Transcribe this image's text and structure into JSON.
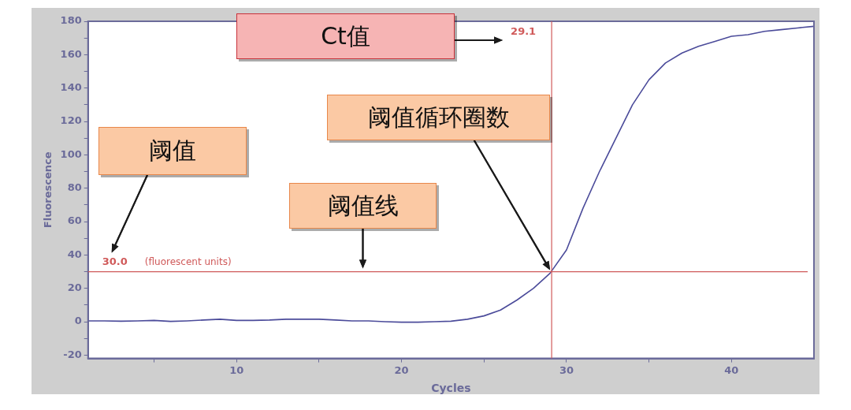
{
  "chart_data": {
    "type": "line",
    "xlabel": "Cycles",
    "ylabel": "Fluorescence",
    "x": [
      1,
      2,
      3,
      4,
      5,
      6,
      7,
      8,
      9,
      10,
      11,
      12,
      13,
      14,
      15,
      16,
      17,
      18,
      19,
      20,
      21,
      22,
      23,
      24,
      25,
      26,
      27,
      28,
      29,
      30,
      31,
      32,
      33,
      34,
      35,
      36,
      37,
      38,
      39,
      40,
      41,
      42,
      43,
      44,
      45
    ],
    "series": [
      {
        "color": "#4b4b9a",
        "values": [
          0.5,
          0.5,
          0.3,
          0.5,
          0.8,
          0.2,
          0.5,
          1,
          1.5,
          0.8,
          0.8,
          1,
          1.5,
          1.5,
          1.5,
          1,
          0.5,
          0.5,
          0,
          -0.3,
          -0.3,
          0,
          0.3,
          1.5,
          3.5,
          7,
          13,
          20,
          29,
          43,
          68,
          90,
          110,
          130,
          145,
          155,
          161,
          165,
          168,
          171,
          172,
          174,
          175,
          176,
          177
        ]
      }
    ],
    "xlim": [
      1,
      45
    ],
    "xticks": [
      {
        "value": 5,
        "label": null
      },
      10,
      {
        "value": 15,
        "label": null
      },
      20,
      {
        "value": 25,
        "label": null
      },
      30,
      {
        "value": 35,
        "label": null
      },
      40
    ],
    "ylim": [
      -22,
      180
    ],
    "yticks": [
      -20,
      {
        "value": -10,
        "label": null
      },
      0,
      {
        "value": 10,
        "label": null
      },
      20,
      {
        "value": 30,
        "label": null
      },
      40,
      {
        "value": 50,
        "label": null
      },
      60,
      {
        "value": 70,
        "label": null
      },
      80,
      {
        "value": 90,
        "label": null
      },
      100,
      {
        "value": 110,
        "label": null
      },
      120,
      {
        "value": 130,
        "label": null
      },
      140,
      {
        "value": 150,
        "label": null
      },
      160,
      {
        "value": 170,
        "label": null
      },
      180
    ],
    "ref_lines": [
      {
        "axis": "x",
        "value": 29.1,
        "label": "29.1",
        "color": "#d05a5a"
      },
      {
        "axis": "y",
        "value": 30,
        "label": "30.0",
        "color": "#d05a5a"
      }
    ],
    "annotations": [
      "Ct值",
      "阈值循环圈数",
      "阈值",
      "阈值线",
      "(fluorescent units)"
    ],
    "grid": false,
    "legend": false,
    "marker": "none",
    "line_style": "solid"
  }
}
